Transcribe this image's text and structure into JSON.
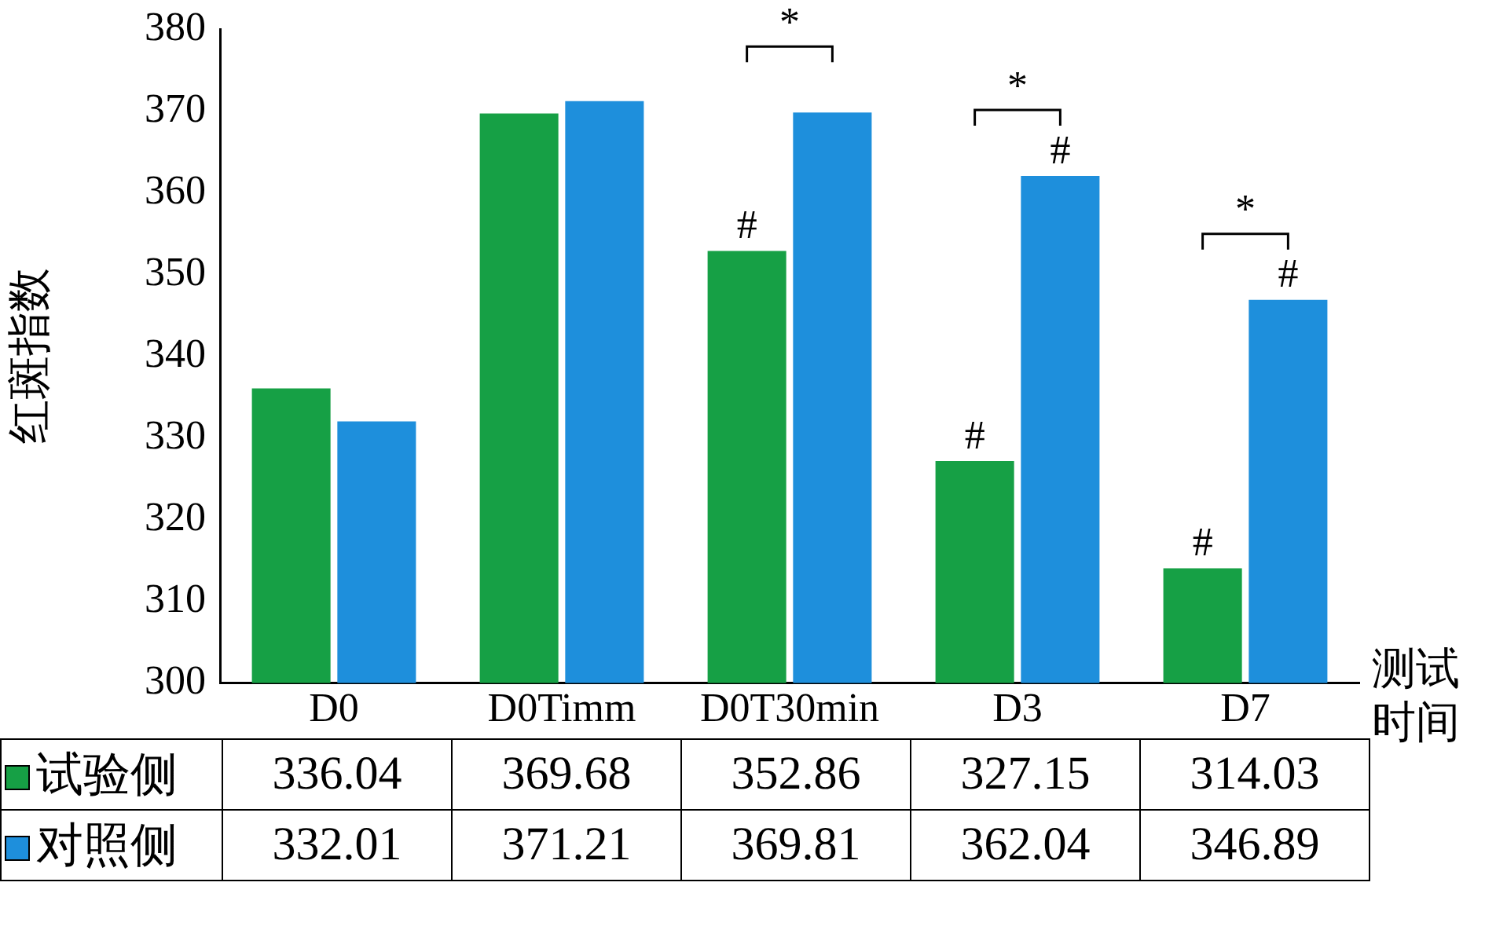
{
  "chart_data": {
    "type": "bar",
    "ylabel": "红斑指数",
    "xlabel": "测试时间",
    "categories": [
      "D0",
      "D0Timm",
      "D0T30min",
      "D3",
      "D7"
    ],
    "series": [
      {
        "name": "试验侧",
        "color": "#16a045",
        "values": [
          336.04,
          369.68,
          352.86,
          327.15,
          314.03
        ]
      },
      {
        "name": "对照侧",
        "color": "#1e8fdc",
        "values": [
          332.01,
          371.21,
          369.81,
          362.04,
          346.89
        ]
      }
    ],
    "ylim": [
      300,
      380
    ],
    "yticks": [
      300,
      310,
      320,
      330,
      340,
      350,
      360,
      370,
      380
    ],
    "grid": false,
    "legend": "bottom",
    "data_labels": true,
    "annotations": [
      {
        "text": "#",
        "x": "D0T30min",
        "y": 352.86
      },
      {
        "text": "#",
        "x": "D3",
        "y": 327.15
      },
      {
        "text": "#",
        "x": "D3",
        "y": 362.04
      },
      {
        "text": "#",
        "x": "D7",
        "y": 314.03
      },
      {
        "text": "#",
        "x": "D7",
        "y": 346.89
      },
      "*",
      "*",
      "*"
    ]
  }
}
